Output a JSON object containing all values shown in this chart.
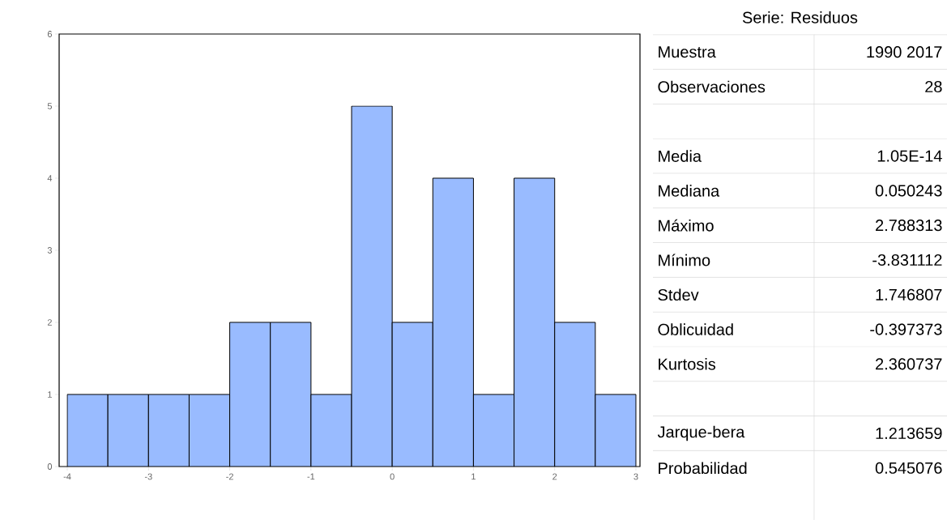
{
  "chart_data": [
    {
      "type": "histogram",
      "bins": [
        -4,
        -3.5,
        -3,
        -2.5,
        -2,
        -1.5,
        -1,
        -0.5,
        0,
        0.5,
        1,
        1.5,
        2,
        2.5,
        3
      ],
      "values": [
        1,
        1,
        1,
        1,
        2,
        2,
        1,
        5,
        2,
        4,
        1,
        4,
        2,
        1
      ],
      "color": "#99bbff",
      "xlim": [
        -4.1,
        3.05
      ],
      "ylim": [
        0,
        6
      ],
      "xticks": [
        -4,
        -3,
        -2,
        -1,
        0,
        1,
        2,
        3
      ],
      "yticks": [
        0,
        1,
        2,
        3,
        4,
        5,
        6
      ],
      "grid": false
    },
    {
      "type": "other",
      "title": "Serie: Residuos",
      "annotations": [
        "Muestra",
        "1990 2017",
        "Observaciones",
        "28",
        "Media",
        "1.05E-14",
        "Mediana",
        "0.050243",
        "Máximo",
        "2.788313",
        "Mínimo",
        "-3.831112",
        "Stdev",
        "1.746807",
        "Oblicuidad",
        "-0.397373",
        "Kurtosis",
        "2.360737",
        "Jarque-bera",
        "1.213659",
        "Probabilidad",
        "0.545076"
      ]
    }
  ]
}
